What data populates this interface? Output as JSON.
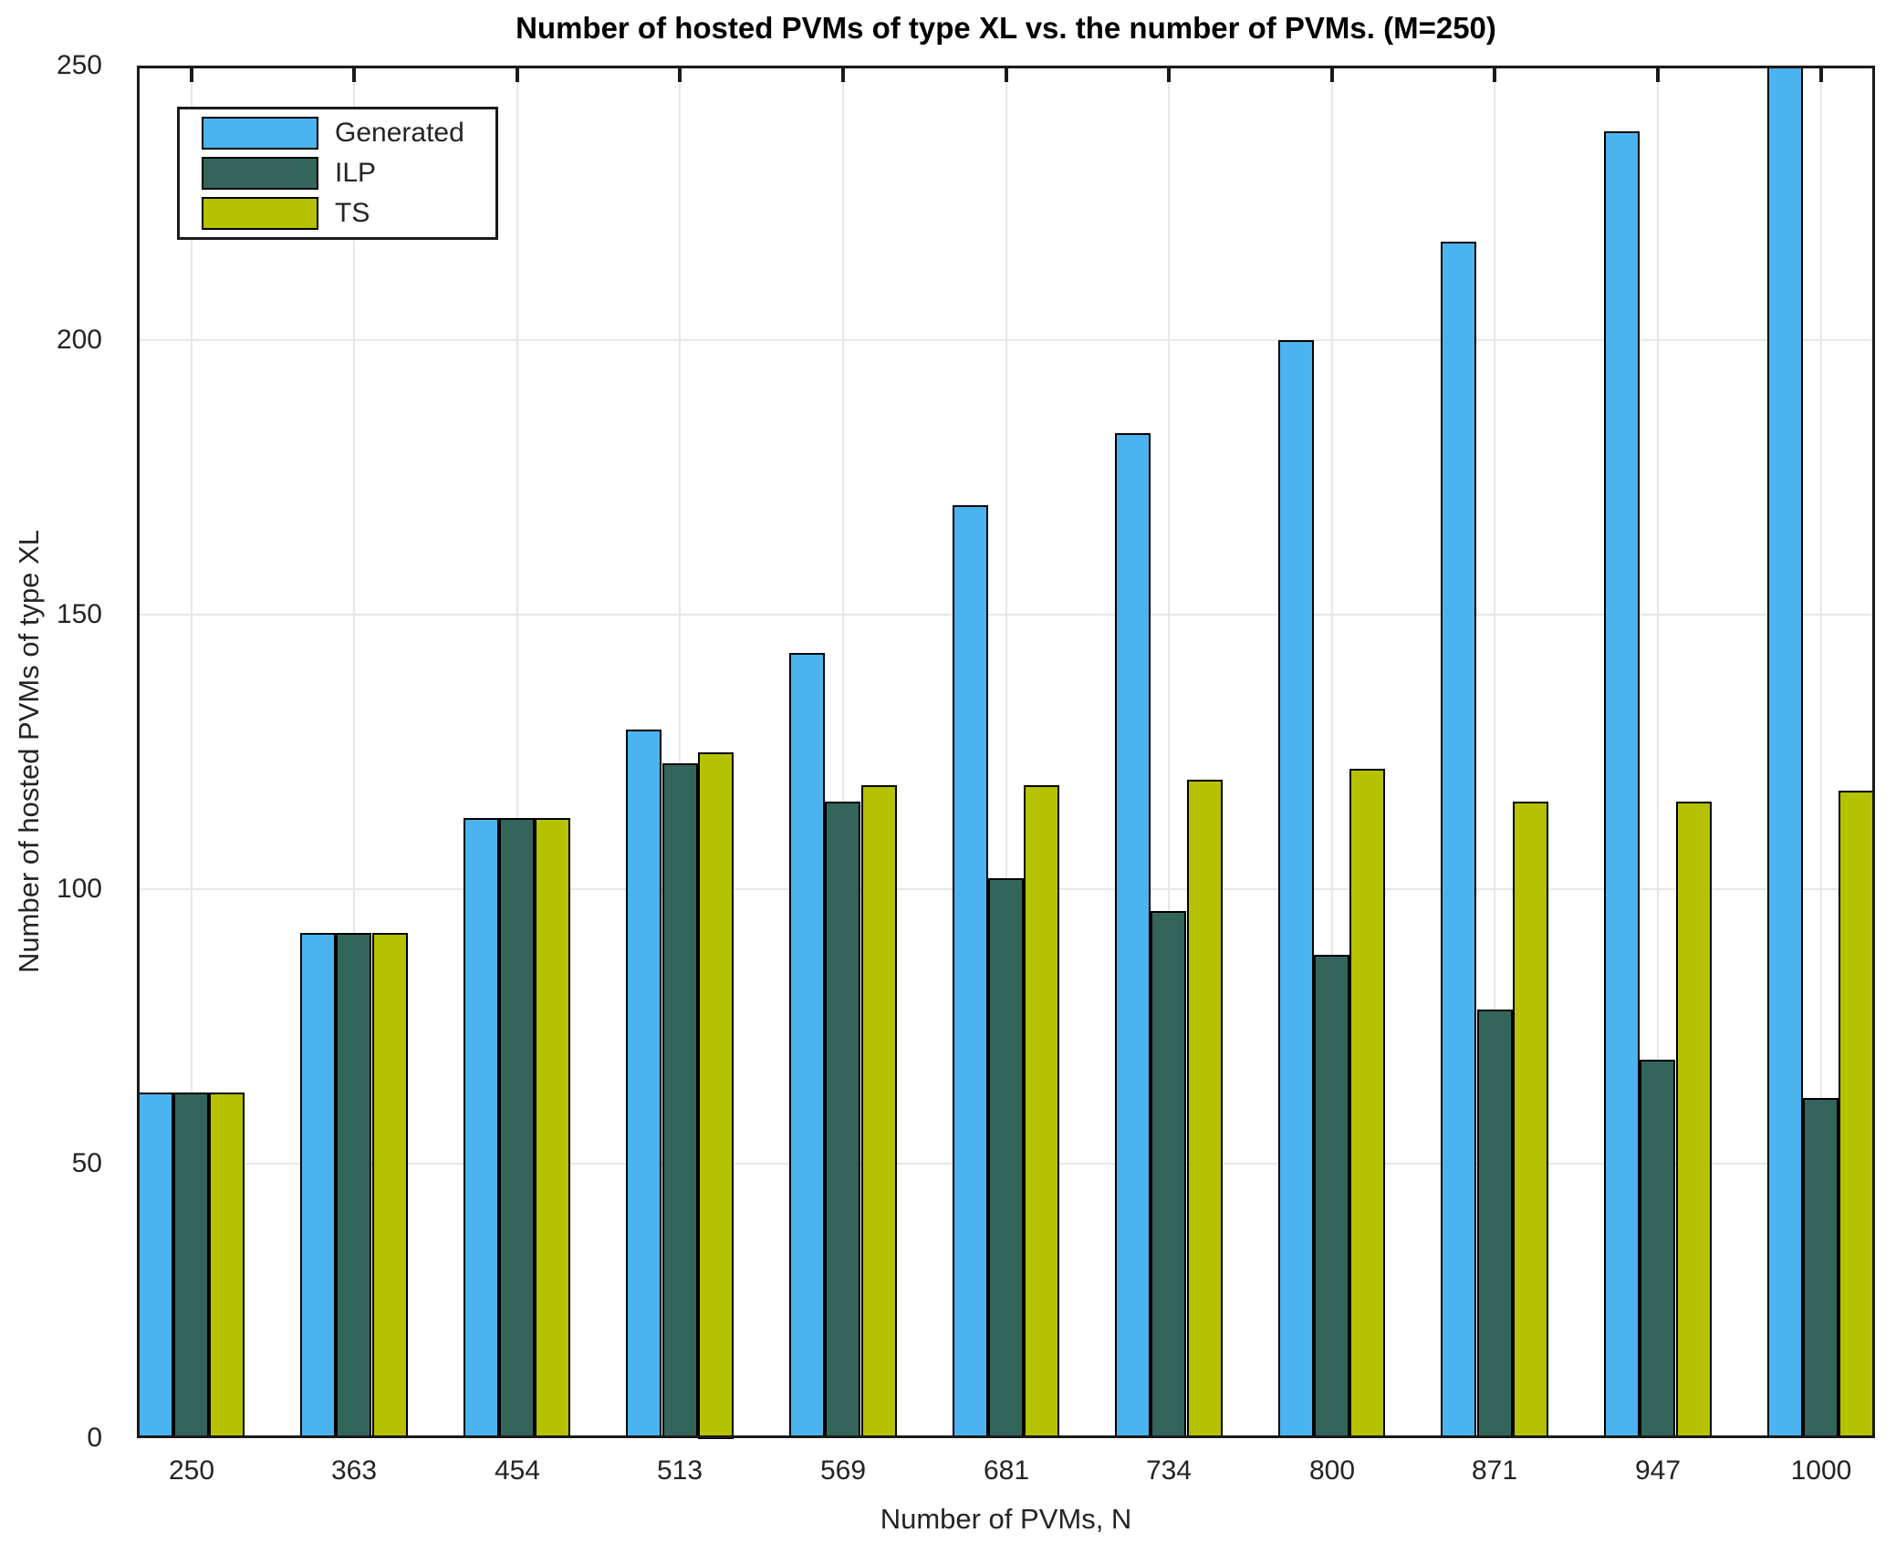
{
  "title": "Number of hosted PVMs of type XL vs. the number of PVMs. (M=250)",
  "axes": {
    "xlabel": "Number of PVMs, N",
    "ylabel": "Number of hosted PVMs of type XL"
  },
  "legend": {
    "items": [
      "Generated",
      "ILP",
      "TS"
    ]
  },
  "colors": {
    "generated": "#4bb4f0",
    "ilp": "#33655b",
    "ts": "#b5c200",
    "axis": "#1a1a1a",
    "grid": "#e7e7e7"
  },
  "chart_data": {
    "type": "bar",
    "title": "Number of hosted PVMs of type XL vs. the number of PVMs. (M=250)",
    "xlabel": "Number of PVMs, N",
    "ylabel": "Number of hosted PVMs of type XL",
    "categories": [
      "250",
      "363",
      "454",
      "513",
      "569",
      "681",
      "734",
      "800",
      "871",
      "947",
      "1000"
    ],
    "series": [
      {
        "name": "Generated",
        "color": "#4bb4f0",
        "values": [
          63,
          92,
          113,
          129,
          143,
          170,
          183,
          200,
          218,
          238,
          250
        ]
      },
      {
        "name": "ILP",
        "color": "#33655b",
        "values": [
          63,
          92,
          113,
          123,
          116,
          102,
          96,
          88,
          78,
          69,
          62
        ]
      },
      {
        "name": "TS",
        "color": "#b5c200",
        "values": [
          63,
          92,
          113,
          125,
          119,
          119,
          120,
          122,
          116,
          116,
          118
        ]
      }
    ],
    "ylim": [
      0,
      250
    ],
    "yticks": [
      0,
      50,
      100,
      150,
      200,
      250
    ],
    "grid": true,
    "legend_position": "top-left"
  }
}
